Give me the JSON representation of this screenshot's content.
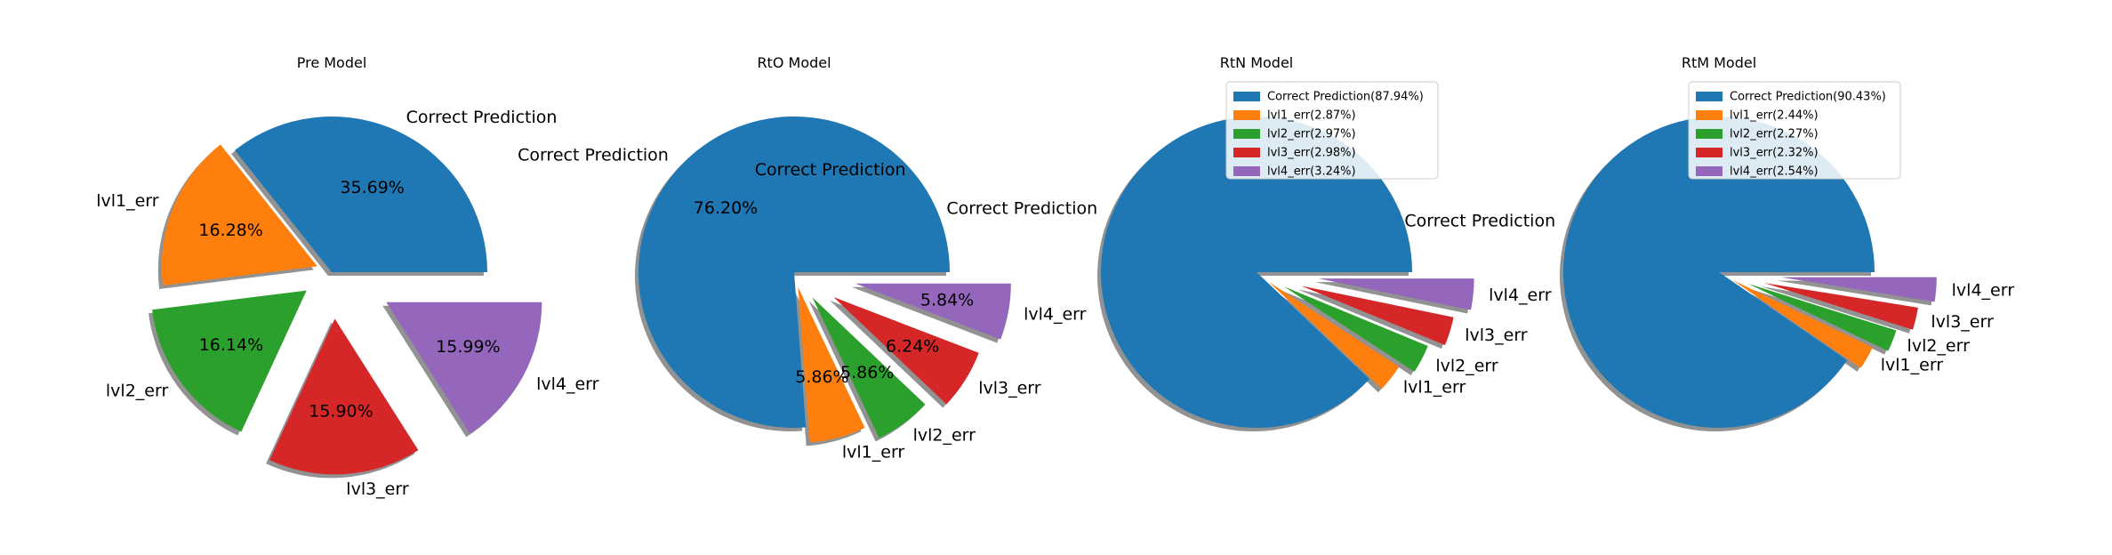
{
  "colors": {
    "correct": "#1f77b4",
    "lvl1": "#ff7f0e",
    "lvl2": "#2ca02c",
    "lvl3": "#d62728",
    "lvl4": "#9467bd",
    "shadow": "#7f7f7f"
  },
  "chart_data": [
    {
      "type": "pie",
      "title": "Pre Model",
      "labels": [
        "Correct Prediction",
        "lvl1_err",
        "lvl2_err",
        "lvl3_err",
        "lvl4_err"
      ],
      "values": [
        35.69,
        16.28,
        16.14,
        15.9,
        15.99
      ],
      "pct_labels": [
        "35.69%",
        "16.28%",
        "16.14%",
        "15.90%",
        "15.99%"
      ],
      "explode": [
        0,
        0.1,
        0.2,
        0.3,
        0.4
      ],
      "shadow": true,
      "legend": null
    },
    {
      "type": "pie",
      "title": "RtO Model",
      "labels": [
        "Correct Prediction",
        "lvl1_err",
        "lvl2_err",
        "lvl3_err",
        "lvl4_err"
      ],
      "values": [
        76.2,
        5.86,
        5.86,
        6.24,
        5.84
      ],
      "pct_labels": [
        "76.20%",
        "5.86%",
        "5.86%",
        "6.24%",
        "5.84%"
      ],
      "extra_label": "Correct Prediction",
      "explode": [
        0,
        0.1,
        0.2,
        0.3,
        0.4
      ],
      "shadow": true,
      "legend": null
    },
    {
      "type": "pie",
      "title": "RtN Model",
      "labels": [
        "Correct Prediction",
        "lvl1_err",
        "lvl2_err",
        "lvl3_err",
        "lvl4_err"
      ],
      "values": [
        87.94,
        2.87,
        2.97,
        2.98,
        3.24
      ],
      "pct_labels": [],
      "explode": [
        0,
        0.1,
        0.2,
        0.3,
        0.4
      ],
      "shadow": true,
      "legend": {
        "position": "top-right",
        "entries": [
          "Correct Prediction(87.94%)",
          "lvl1_err(2.87%)",
          "lvl2_err(2.97%)",
          "lvl3_err(2.98%)",
          "lvl4_err(3.24%)"
        ]
      }
    },
    {
      "type": "pie",
      "title": "RtM Model",
      "labels": [
        "Correct Prediction",
        "lvl1_err",
        "lvl2_err",
        "lvl3_err",
        "lvl4_err"
      ],
      "values": [
        90.43,
        2.44,
        2.27,
        2.32,
        2.54
      ],
      "pct_labels": [],
      "explode": [
        0,
        0.1,
        0.2,
        0.3,
        0.4
      ],
      "shadow": true,
      "legend": {
        "position": "top-right",
        "entries": [
          "Correct Prediction(90.43%)",
          "lvl1_err(2.44%)",
          "lvl2_err(2.27%)",
          "lvl3_err(2.32%)",
          "lvl4_err(2.54%)"
        ]
      }
    }
  ]
}
